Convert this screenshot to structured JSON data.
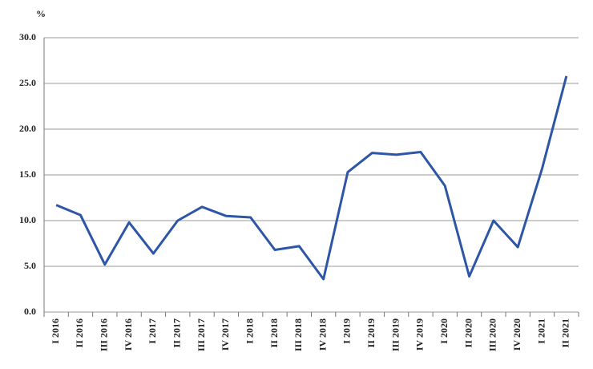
{
  "chart_data": {
    "type": "line",
    "unit_label": "%",
    "categories": [
      "I 2016",
      "II 2016",
      "III 2016",
      "IV 2016",
      "I 2017",
      "II 2017",
      "III 2017",
      "IV 2017",
      "I 2018",
      "II 2018",
      "III 2018",
      "IV 2018",
      "I 2019",
      "II 2019",
      "III 2019",
      "IV 2019",
      "I 2020",
      "II 2020",
      "III 2020",
      "IV 2020",
      "I 2021",
      "II 2021"
    ],
    "series": [
      {
        "color": "#2e56a6",
        "values": [
          11.7,
          10.6,
          5.2,
          9.8,
          6.4,
          10.0,
          11.5,
          10.5,
          10.35,
          6.8,
          7.2,
          3.6,
          15.3,
          17.4,
          17.2,
          17.5,
          13.8,
          3.9,
          10.0,
          7.1,
          15.7,
          25.8
        ]
      }
    ],
    "ylim": [
      0,
      30
    ],
    "yticks": [
      {
        "value": 0,
        "label": "0.0"
      },
      {
        "value": 5,
        "label": "5.0"
      },
      {
        "value": 10,
        "label": "10.0"
      },
      {
        "value": 15,
        "label": "15.0"
      },
      {
        "value": 20,
        "label": "20.0"
      },
      {
        "value": 25,
        "label": "25.0"
      },
      {
        "value": 30,
        "label": "30.0"
      }
    ],
    "grid": true
  }
}
